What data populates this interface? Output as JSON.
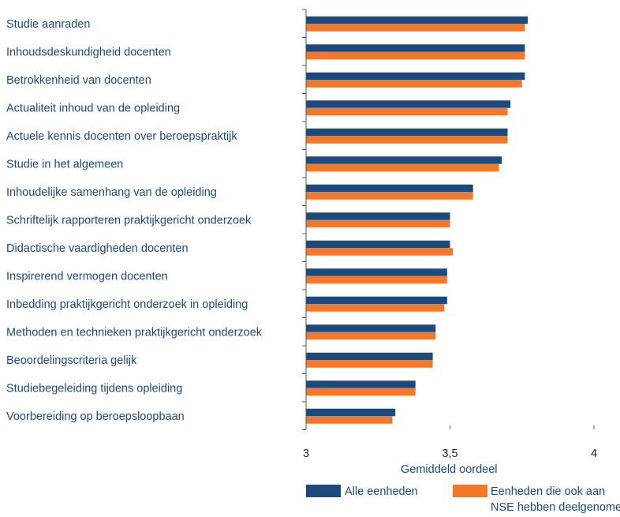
{
  "colors": {
    "series1": "#1b4a7e",
    "series2": "#f4772a",
    "label_text": "#1b4a7e",
    "axis": "#555555"
  },
  "chart_data": {
    "type": "bar",
    "orientation": "horizontal",
    "title": "",
    "xlabel": "Gemiddeld oordeel",
    "ylabel": "",
    "xlim": [
      3,
      4
    ],
    "x_ticks": [
      "3",
      "3,5",
      "4"
    ],
    "x_tick_values": [
      3,
      3.5,
      4
    ],
    "grid": false,
    "legend_position": "bottom",
    "categories": [
      "Studie aanraden",
      "Inhoudsdeskundigheid docenten",
      "Betrokkenheid van docenten",
      "Actualiteit inhoud van de opleiding",
      "Actuele kennis docenten over beroepspraktijk",
      "Studie in het algemeen",
      "Inhoudelijke samenhang van de opleiding",
      "Schriftelijk rapporteren praktijkgericht onderzoek",
      "Didactische vaardigheden docenten",
      "Inspirerend vermogen docenten",
      "Inbedding praktijkgericht onderzoek in opleiding",
      "Methoden en technieken praktijkgericht onderzoek",
      "Beoordelingscriteria gelijk",
      "Studiebegeleiding tijdens opleiding",
      "Voorbereiding op beroepsloopbaan"
    ],
    "series": [
      {
        "name": "Alle eenheden",
        "values": [
          3.77,
          3.76,
          3.76,
          3.71,
          3.7,
          3.68,
          3.58,
          3.5,
          3.5,
          3.49,
          3.49,
          3.45,
          3.44,
          3.38,
          3.31
        ]
      },
      {
        "name": "Eenheden die ook aan NSE hebben deelgenomen",
        "name_lines": [
          "Eenheden die ook aan",
          "NSE hebben deelgenomen"
        ],
        "values": [
          3.76,
          3.76,
          3.75,
          3.7,
          3.7,
          3.67,
          3.58,
          3.5,
          3.51,
          3.49,
          3.48,
          3.45,
          3.44,
          3.38,
          3.3
        ]
      }
    ]
  }
}
